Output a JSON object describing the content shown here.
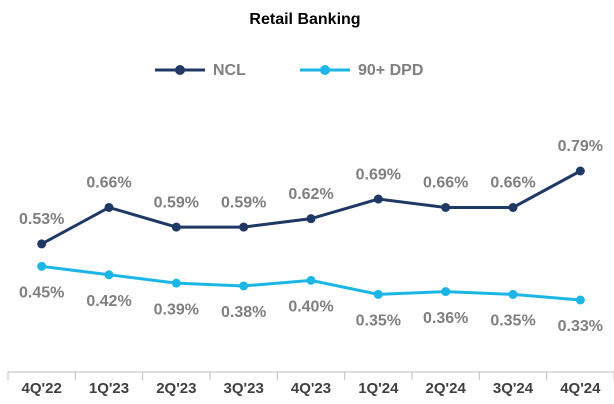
{
  "chart_data": {
    "type": "line",
    "title": "Retail Banking",
    "categories": [
      "4Q'22",
      "1Q'23",
      "2Q'23",
      "3Q'23",
      "4Q'23",
      "1Q'24",
      "2Q'24",
      "3Q'24",
      "4Q'24"
    ],
    "series": [
      {
        "name": "NCL",
        "color": "#1f3864",
        "values": [
          0.53,
          0.66,
          0.59,
          0.59,
          0.62,
          0.69,
          0.66,
          0.66,
          0.79
        ],
        "value_labels": [
          "0.53%",
          "0.66%",
          "0.59%",
          "0.59%",
          "0.62%",
          "0.69%",
          "0.66%",
          "0.66%",
          "0.79%"
        ]
      },
      {
        "name": "90+ DPD",
        "color": "#1cb6e6",
        "values": [
          0.45,
          0.42,
          0.39,
          0.38,
          0.4,
          0.35,
          0.36,
          0.35,
          0.33
        ],
        "value_labels": [
          "0.45%",
          "0.42%",
          "0.39%",
          "0.38%",
          "0.40%",
          "0.35%",
          "0.36%",
          "0.35%",
          "0.33%"
        ]
      }
    ]
  }
}
